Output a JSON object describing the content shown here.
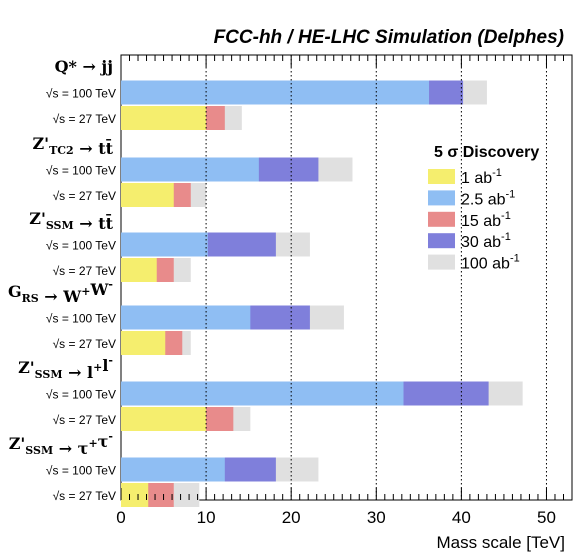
{
  "chart_data": {
    "type": "bar",
    "orientation": "horizontal",
    "stacked": "overlay",
    "title": "FCC-hh / HE-LHC Simulation (Delphes)",
    "xlabel": "Mass scale [TeV]",
    "xlim": [
      0,
      53
    ],
    "xticks": [
      0,
      10,
      20,
      30,
      40,
      50
    ],
    "gridlines_x": [
      10,
      20,
      30,
      40,
      50
    ],
    "legend": {
      "title": "5 σ Discovery",
      "placement": "right",
      "entries": [
        {
          "label": "1 ab",
          "sup": "-1",
          "color": "#f5ee6e"
        },
        {
          "label": "2.5 ab",
          "sup": "-1",
          "color": "#8fbef3"
        },
        {
          "label": "15 ab",
          "sup": "-1",
          "color": "#e88b8b"
        },
        {
          "label": "30 ab",
          "sup": "-1",
          "color": "#7f7fdb"
        },
        {
          "label": "100 ab",
          "sup": "-1",
          "color": "#e0e0e0"
        }
      ]
    },
    "groups": [
      {
        "process": {
          "base": "Q* → jj",
          "parts": [
            {
              "t": "Q* ",
              "s": "n"
            },
            {
              "t": "→ jj",
              "s": "n"
            }
          ]
        },
        "rows": [
          {
            "energy": "= 100 TeV",
            "segments": [
              {
                "lumi": "2.5 ab-1",
                "value": 36.2
              },
              {
                "lumi": "30 ab-1",
                "value": 40.2
              },
              {
                "lumi": "100 ab-1",
                "value": 43.0
              }
            ]
          },
          {
            "energy": "= 27 TeV",
            "segments": [
              {
                "lumi": "1 ab-1",
                "value": 10.0
              },
              {
                "lumi": "15 ab-1",
                "value": 12.2
              },
              {
                "lumi": "100 ab-1",
                "value": 14.2
              }
            ]
          }
        ]
      },
      {
        "process": {
          "base": "Z'TC2 → tt̄",
          "parts": [
            {
              "t": "Z'",
              "s": "n"
            },
            {
              "t": "TC2",
              "s": "sub"
            },
            {
              "t": " → tt̄",
              "s": "n"
            }
          ]
        },
        "rows": [
          {
            "energy": "= 100 TeV",
            "segments": [
              {
                "lumi": "2.5 ab-1",
                "value": 16.2
              },
              {
                "lumi": "30 ab-1",
                "value": 23.2
              },
              {
                "lumi": "100 ab-1",
                "value": 27.2
              }
            ]
          },
          {
            "energy": "= 27 TeV",
            "segments": [
              {
                "lumi": "1 ab-1",
                "value": 6.2
              },
              {
                "lumi": "15 ab-1",
                "value": 8.2
              },
              {
                "lumi": "100 ab-1",
                "value": 10.0
              }
            ]
          }
        ]
      },
      {
        "process": {
          "base": "Z'SSM → tt̄",
          "parts": [
            {
              "t": "Z'",
              "s": "n"
            },
            {
              "t": "SSM",
              "s": "sub"
            },
            {
              "t": " → tt̄",
              "s": "n"
            }
          ]
        },
        "rows": [
          {
            "energy": "= 100 TeV",
            "segments": [
              {
                "lumi": "2.5 ab-1",
                "value": 10.2
              },
              {
                "lumi": "30 ab-1",
                "value": 18.2
              },
              {
                "lumi": "100 ab-1",
                "value": 22.2
              }
            ]
          },
          {
            "energy": "= 27 TeV",
            "segments": [
              {
                "lumi": "1 ab-1",
                "value": 4.2
              },
              {
                "lumi": "15 ab-1",
                "value": 6.2
              },
              {
                "lumi": "100 ab-1",
                "value": 8.2
              }
            ]
          }
        ]
      },
      {
        "process": {
          "base": "GRS → W+W-",
          "parts": [
            {
              "t": "G",
              "s": "n"
            },
            {
              "t": "RS",
              "s": "sub"
            },
            {
              "t": " → W",
              "s": "n"
            },
            {
              "t": "+",
              "s": "sup"
            },
            {
              "t": "W",
              "s": "n"
            },
            {
              "t": "-",
              "s": "sup"
            }
          ]
        },
        "rows": [
          {
            "energy": "= 100 TeV",
            "segments": [
              {
                "lumi": "2.5 ab-1",
                "value": 15.2
              },
              {
                "lumi": "30 ab-1",
                "value": 22.2
              },
              {
                "lumi": "100 ab-1",
                "value": 26.2
              }
            ]
          },
          {
            "energy": "= 27 TeV",
            "segments": [
              {
                "lumi": "1 ab-1",
                "value": 5.2
              },
              {
                "lumi": "15 ab-1",
                "value": 7.2
              },
              {
                "lumi": "100 ab-1",
                "value": 8.2
              }
            ]
          }
        ]
      },
      {
        "process": {
          "base": "Z'SSM → l+l-",
          "parts": [
            {
              "t": "Z'",
              "s": "n"
            },
            {
              "t": "SSM",
              "s": "sub"
            },
            {
              "t": " → l",
              "s": "n"
            },
            {
              "t": "+",
              "s": "sup"
            },
            {
              "t": "l",
              "s": "n"
            },
            {
              "t": "-",
              "s": "sup"
            }
          ]
        },
        "rows": [
          {
            "energy": "= 100 TeV",
            "segments": [
              {
                "lumi": "2.5 ab-1",
                "value": 33.2
              },
              {
                "lumi": "30 ab-1",
                "value": 43.2
              },
              {
                "lumi": "100 ab-1",
                "value": 47.2
              }
            ]
          },
          {
            "energy": "= 27 TeV",
            "segments": [
              {
                "lumi": "1 ab-1",
                "value": 10.0
              },
              {
                "lumi": "15 ab-1",
                "value": 13.2
              },
              {
                "lumi": "100 ab-1",
                "value": 15.2
              }
            ]
          }
        ]
      },
      {
        "process": {
          "base": "Z'SSM → τ+τ-",
          "parts": [
            {
              "t": "Z'",
              "s": "n"
            },
            {
              "t": "SSM",
              "s": "sub"
            },
            {
              "t": " → τ",
              "s": "n"
            },
            {
              "t": "+",
              "s": "sup"
            },
            {
              "t": "τ",
              "s": "n"
            },
            {
              "t": "-",
              "s": "sup"
            }
          ]
        },
        "rows": [
          {
            "energy": "= 100 TeV",
            "segments": [
              {
                "lumi": "2.5 ab-1",
                "value": 12.2
              },
              {
                "lumi": "30 ab-1",
                "value": 18.2
              },
              {
                "lumi": "100 ab-1",
                "value": 23.2
              }
            ]
          },
          {
            "energy": "= 27 TeV",
            "segments": [
              {
                "lumi": "1 ab-1",
                "value": 3.2
              },
              {
                "lumi": "15 ab-1",
                "value": 6.2
              },
              {
                "lumi": "100 ab-1",
                "value": 9.2
              }
            ]
          }
        ]
      }
    ]
  }
}
